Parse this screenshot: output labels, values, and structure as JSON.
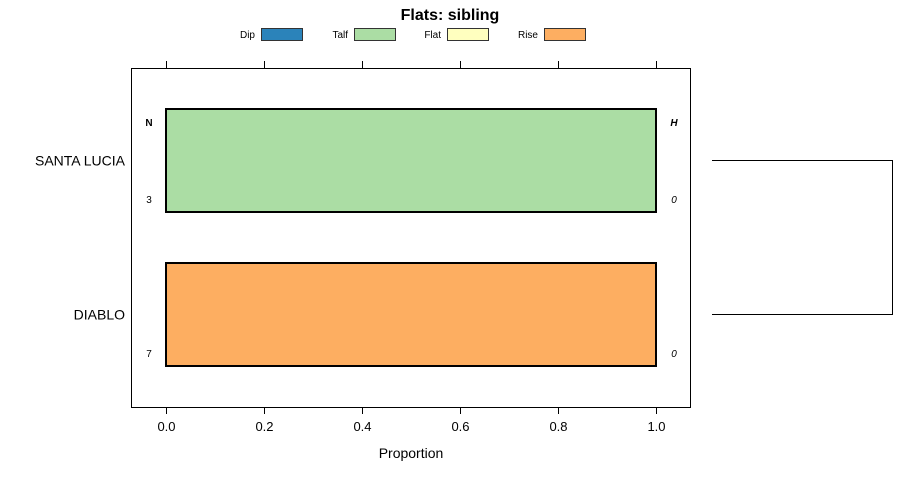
{
  "chart_data": {
    "type": "bar",
    "orientation": "horizontal-stacked",
    "title": "Flats: sibling",
    "xlabel": "Proportion",
    "ylabel": "",
    "xlim": [
      -0.07,
      1.07
    ],
    "xticks": [
      0.0,
      0.2,
      0.4,
      0.6,
      0.8,
      1.0
    ],
    "xtick_labels": [
      "0.0",
      "0.2",
      "0.4",
      "0.6",
      "0.8",
      "1.0"
    ],
    "legend": [
      {
        "name": "Dip",
        "color": "#2b83ba"
      },
      {
        "name": "Talf",
        "color": "#abdda4"
      },
      {
        "name": "Flat",
        "color": "#ffffbf"
      },
      {
        "name": "Rise",
        "color": "#fdae61"
      }
    ],
    "legend_position": "top",
    "left_header": "N",
    "right_header": "H",
    "categories": [
      "SANTA LUCIA",
      "DIABLO"
    ],
    "n_values": [
      "3",
      "7"
    ],
    "h_values": [
      "0",
      "0"
    ],
    "series": [
      {
        "name": "Dip",
        "values": [
          0,
          0
        ]
      },
      {
        "name": "Talf",
        "values": [
          1.0,
          0
        ]
      },
      {
        "name": "Flat",
        "values": [
          0,
          0
        ]
      },
      {
        "name": "Rise",
        "values": [
          0,
          1.0
        ]
      }
    ],
    "dendrogram": "SANTA LUCIA and DIABLO joined in one cluster"
  }
}
